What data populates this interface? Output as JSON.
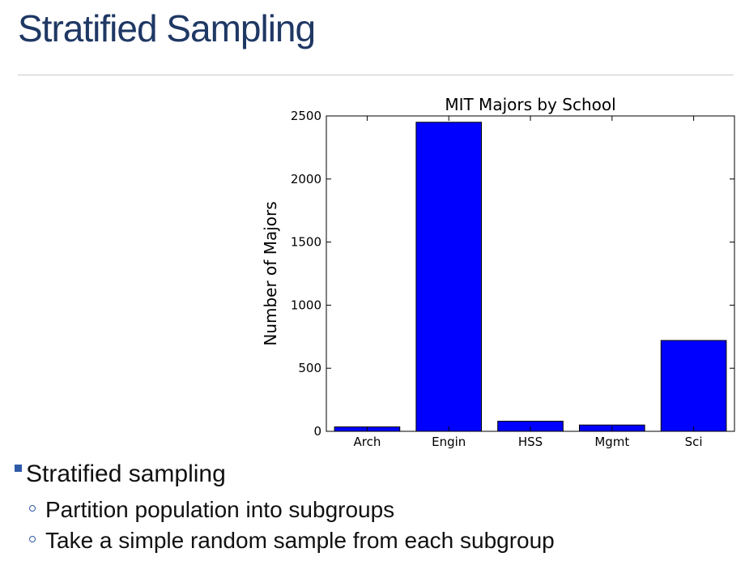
{
  "slide": {
    "title": "Stratified Sampling"
  },
  "bullets": {
    "main": "Stratified sampling",
    "subs": [
      "Partition population into subgroups",
      "Take a simple random sample from each subgroup"
    ]
  },
  "colors": {
    "title": "#1f3864",
    "bar": "#0000ff",
    "bullet": "#2e5aa8"
  },
  "chart_data": {
    "type": "bar",
    "title": "MIT Majors by School",
    "xlabel": "",
    "ylabel": "Number of Majors",
    "categories": [
      "Arch",
      "Engin",
      "HSS",
      "Mgmt",
      "Sci"
    ],
    "values": [
      35,
      2450,
      80,
      50,
      720
    ],
    "ylim": [
      0,
      2500
    ],
    "yticks": [
      0,
      500,
      1000,
      1500,
      2000,
      2500
    ],
    "grid": false,
    "legend": "none"
  }
}
